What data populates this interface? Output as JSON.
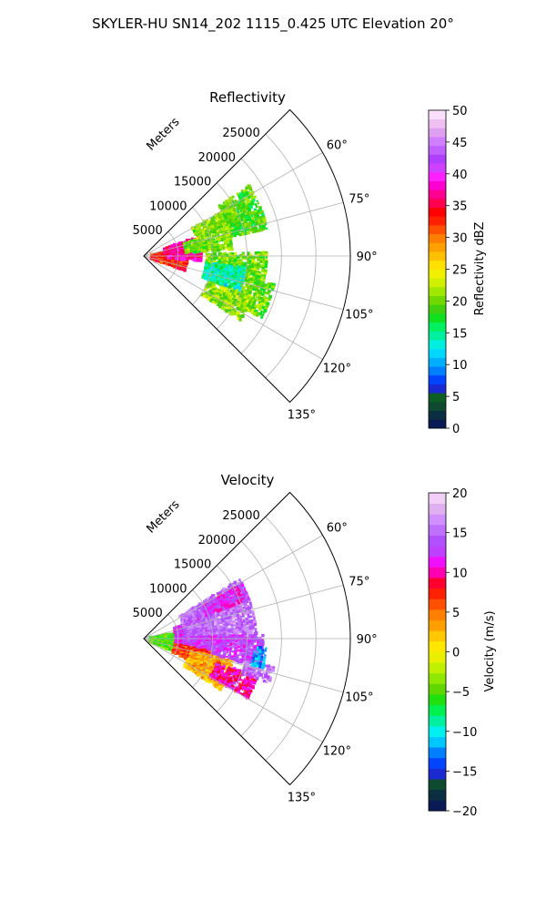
{
  "figure": {
    "suptitle": "SKYLER-HU  SN14_202  1115_0.425 UTC Elevation 20°"
  },
  "chart_data": [
    {
      "type": "polar-sector",
      "title": "Reflectivity",
      "r_axis_label": "Meters",
      "r_ticks": [
        5000,
        10000,
        15000,
        20000,
        25000
      ],
      "r_tick_labels": [
        "5000",
        "10000",
        "15000",
        "20000",
        "25000"
      ],
      "r_max": 30000,
      "theta_range_deg": [
        45,
        135
      ],
      "theta_ticks": [
        60,
        75,
        90,
        105,
        120,
        135
      ],
      "theta_tick_labels": [
        "60°",
        "75°",
        "90°",
        "105°",
        "120°",
        "135°"
      ],
      "grid": true,
      "colorbar": {
        "label": "Reflectivity dBZ",
        "range": [
          0,
          50
        ],
        "ticks": [
          0,
          5,
          10,
          15,
          20,
          25,
          30,
          35,
          40,
          45,
          50
        ],
        "tick_labels": [
          "0",
          "5",
          "10",
          "15",
          "20",
          "25",
          "30",
          "35",
          "40",
          "45",
          "50"
        ],
        "colors": [
          "#0a1a55",
          "#0b2e40",
          "#0d4a30",
          "#0f5d26",
          "#1a2ad0",
          "#0044ff",
          "#0080ff",
          "#00b0ff",
          "#00d8ff",
          "#00f0e0",
          "#00f0a0",
          "#00f060",
          "#10e020",
          "#40d010",
          "#70d800",
          "#a0e800",
          "#d0f000",
          "#f0f000",
          "#ffe000",
          "#ffc000",
          "#ffa000",
          "#ff8000",
          "#ff5000",
          "#ff2000",
          "#ff0000",
          "#ff0050",
          "#ff0090",
          "#ff00d0",
          "#ff20ff",
          "#d040ff",
          "#b040ff",
          "#c060ff",
          "#d080ff",
          "#e0a0f0",
          "#f0c0f5",
          "#fae0fa"
        ]
      },
      "regions": [
        {
          "r": [
            1000,
            6500
          ],
          "theta": [
            80,
            110
          ],
          "value": 33
        },
        {
          "r": [
            3000,
            8500
          ],
          "theta": [
            70,
            95
          ],
          "value": 37
        },
        {
          "r": [
            6000,
            13000
          ],
          "theta": [
            72,
            86
          ],
          "value": 20
        },
        {
          "r": [
            8000,
            15000
          ],
          "theta": [
            60,
            72
          ],
          "value": 21
        },
        {
          "r": [
            13000,
            18500
          ],
          "theta": [
            56,
            78
          ],
          "value": 19
        },
        {
          "r": [
            9000,
            18000
          ],
          "theta": [
            88,
            104
          ],
          "value": 20
        },
        {
          "r": [
            13500,
            19500
          ],
          "theta": [
            102,
            118
          ],
          "value": 20
        },
        {
          "r": [
            10000,
            17000
          ],
          "theta": [
            110,
            124
          ],
          "value": 21
        },
        {
          "r": [
            9000,
            15000
          ],
          "theta": [
            96,
            110
          ],
          "value": 14
        }
      ]
    },
    {
      "type": "polar-sector",
      "title": "Velocity",
      "r_axis_label": "Meters",
      "r_ticks": [
        5000,
        10000,
        15000,
        20000,
        25000
      ],
      "r_tick_labels": [
        "5000",
        "10000",
        "15000",
        "20000",
        "25000"
      ],
      "r_max": 30000,
      "theta_range_deg": [
        45,
        135
      ],
      "theta_ticks": [
        60,
        75,
        90,
        105,
        120,
        135
      ],
      "theta_tick_labels": [
        "60°",
        "75°",
        "90°",
        "105°",
        "120°",
        "135°"
      ],
      "grid": true,
      "colorbar": {
        "label": "Velocity (m/s)",
        "range": [
          -20,
          20
        ],
        "ticks": [
          -20,
          -15,
          -10,
          -5,
          0,
          5,
          10,
          15,
          20
        ],
        "tick_labels": [
          "−20",
          "−15",
          "−10",
          "−5",
          "0",
          "5",
          "10",
          "15",
          "20"
        ],
        "colors": [
          "#0a1a55",
          "#0b2e40",
          "#0d4a30",
          "#1a2ad0",
          "#0044ff",
          "#0080ff",
          "#00c8ff",
          "#00f0f0",
          "#00f0a0",
          "#00f050",
          "#20e010",
          "#60d800",
          "#90e800",
          "#c0f000",
          "#e8f000",
          "#ffe800",
          "#ffc800",
          "#ffa000",
          "#ff8000",
          "#ff5000",
          "#ff2000",
          "#ff0030",
          "#ff00b0",
          "#f010ff",
          "#c040ff",
          "#b050ff",
          "#c070ff",
          "#d090ff",
          "#e0b0f0",
          "#f0d0f5"
        ]
      },
      "regions": [
        {
          "r": [
            800,
            5000
          ],
          "theta": [
            80,
            115
          ],
          "value": -5
        },
        {
          "r": [
            4500,
            9500
          ],
          "theta": [
            70,
            100
          ],
          "value": 12
        },
        {
          "r": [
            6000,
            16500
          ],
          "theta": [
            58,
            90
          ],
          "value": 15
        },
        {
          "r": [
            9500,
            16500
          ],
          "theta": [
            60,
            70
          ],
          "value": 12
        },
        {
          "r": [
            6000,
            17500
          ],
          "theta": [
            88,
            104
          ],
          "value": 13
        },
        {
          "r": [
            4500,
            10000
          ],
          "theta": [
            100,
            116
          ],
          "value": 7
        },
        {
          "r": [
            7000,
            13500
          ],
          "theta": [
            104,
            124
          ],
          "value": 3
        },
        {
          "r": [
            11000,
            17500
          ],
          "theta": [
            108,
            120
          ],
          "value": 10
        },
        {
          "r": [
            15000,
            19500
          ],
          "theta": [
            102,
            110
          ],
          "value": 15
        },
        {
          "r": [
            16000,
            18000
          ],
          "theta": [
            94,
            104
          ],
          "value": -12
        }
      ]
    }
  ]
}
